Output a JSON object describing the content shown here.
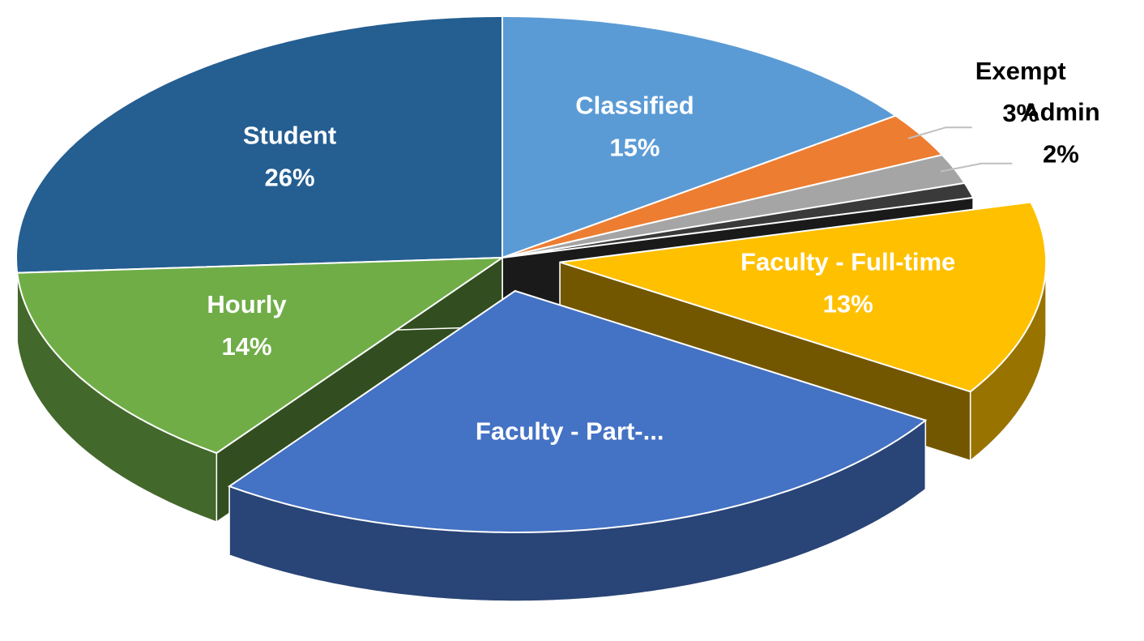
{
  "chart_data": {
    "type": "pie",
    "categories": [
      "Classified",
      "Exempt",
      "Admin",
      null,
      "Faculty - Full-time",
      "Faculty - Part-...",
      "Hourly",
      "Student"
    ],
    "values": [
      15,
      3,
      2,
      1,
      13,
      26,
      14,
      26
    ],
    "value_labels": [
      "15%",
      "3%",
      "2%",
      null,
      "13%",
      null,
      "14%",
      "26%"
    ],
    "colors": [
      "#5b9bd5",
      "#ed7d31",
      "#a5a5a5",
      "#3a3a3a",
      "#ffc000",
      "#4472c4",
      "#70ad47",
      "#255e91"
    ]
  }
}
